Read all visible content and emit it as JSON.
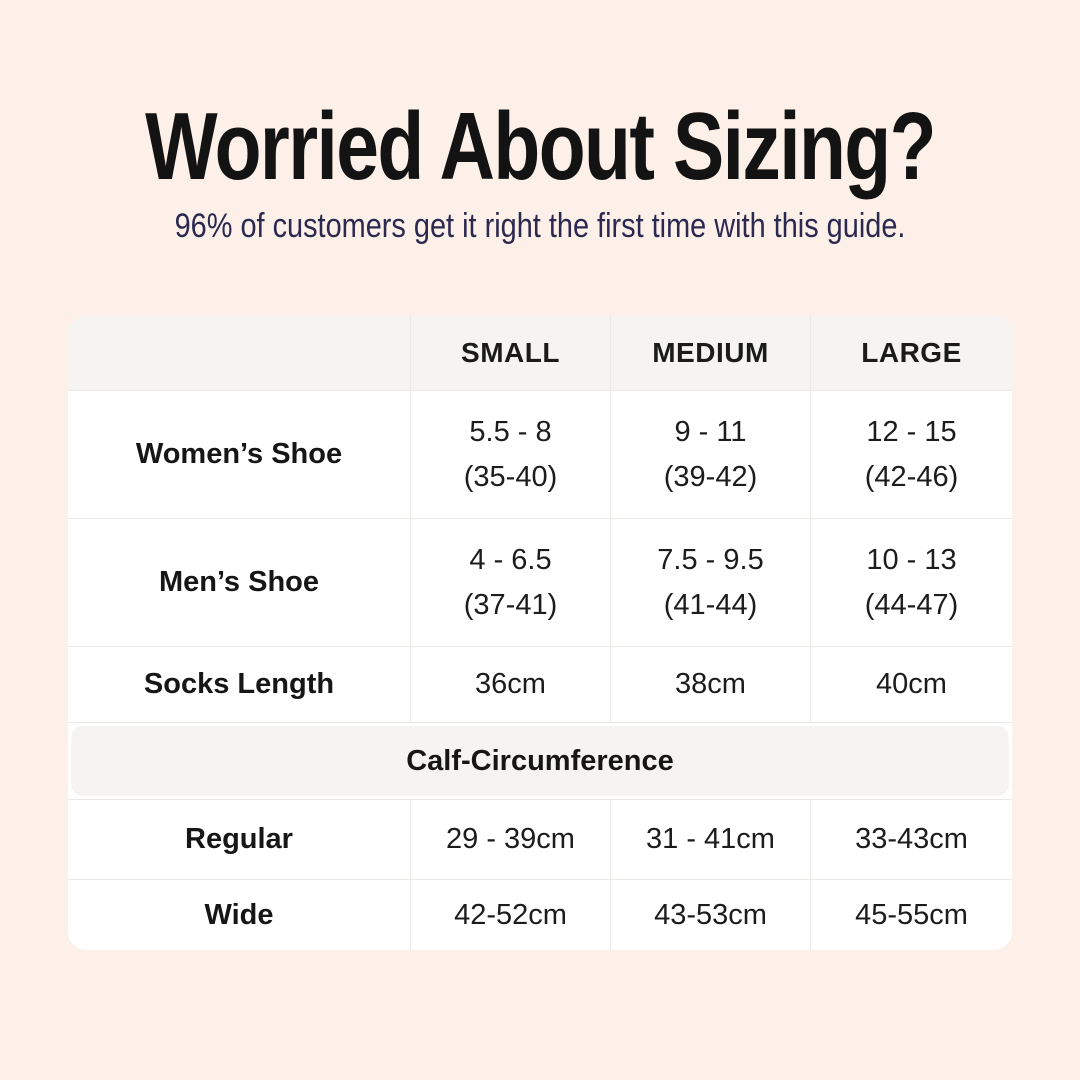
{
  "page": {
    "title": "Worried About Sizing?",
    "subtitle": "96% of customers get it right the first time with this guide.",
    "background_color": "#fcf0e8",
    "title_color": "#131313",
    "subtitle_color": "#2c2950"
  },
  "size_table": {
    "columns": [
      "",
      "SMALL",
      "MEDIUM",
      "LARGE"
    ],
    "rows": [
      {
        "label": "Women’s Shoe",
        "values": [
          "5.5 - 8\n(35-40)",
          "9 - 11\n(39-42)",
          "12 - 15\n(42-46)"
        ]
      },
      {
        "label": "Men’s Shoe",
        "values": [
          "4 - 6.5\n(37-41)",
          "7.5 - 9.5\n(41-44)",
          "10 - 13\n(44-47)"
        ]
      },
      {
        "label": "Socks Length",
        "values": [
          "36cm",
          "38cm",
          "40cm"
        ]
      }
    ],
    "section_header": "Calf-Circumference",
    "section_rows": [
      {
        "label": "Regular",
        "values": [
          "29 - 39cm",
          "31 - 41cm",
          "33-43cm"
        ]
      },
      {
        "label": "Wide",
        "values": [
          "42-52cm",
          "43-53cm",
          "45-55cm"
        ]
      }
    ],
    "colors": {
      "card_background": "#ffffff",
      "header_background": "#f5f4f2",
      "border": "#ebe9e6",
      "text": "#1c1c1c"
    }
  },
  "chart_data": {
    "type": "table",
    "title": "Worried About Sizing?",
    "columns": [
      "",
      "SMALL",
      "MEDIUM",
      "LARGE"
    ],
    "rows": [
      [
        "Women’s Shoe",
        "5.5 - 8 (35-40)",
        "9 - 11 (39-42)",
        "12 - 15 (42-46)"
      ],
      [
        "Men’s Shoe",
        "4 - 6.5 (37-41)",
        "7.5 - 9.5 (41-44)",
        "10 - 13 (44-47)"
      ],
      [
        "Socks Length",
        "36cm",
        "38cm",
        "40cm"
      ],
      [
        "Calf-Circumference",
        "",
        "",
        ""
      ],
      [
        "Regular",
        "29 - 39cm",
        "31 - 41cm",
        "33-43cm"
      ],
      [
        "Wide",
        "42-52cm",
        "43-53cm",
        "45-55cm"
      ]
    ]
  }
}
